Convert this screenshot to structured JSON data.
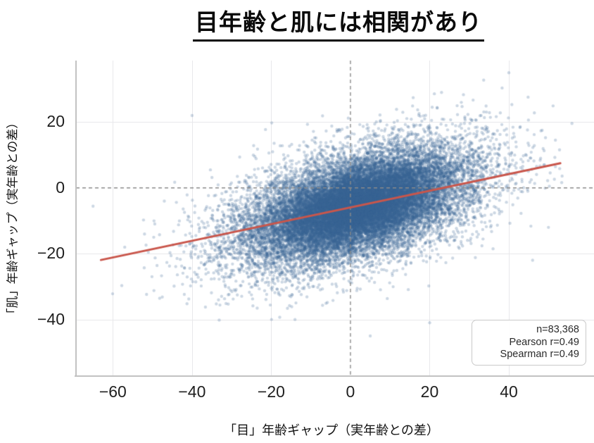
{
  "chart_data": {
    "type": "scatter",
    "title": "目年齢と肌には相関があり",
    "xlabel": "「目」年齢ギャップ（実年齢との差）",
    "ylabel": "「肌」年齢ギャップ（実年齢との差）",
    "xlim": [
      -69.3,
      61.5
    ],
    "ylim": [
      -57.2,
      38.7
    ],
    "xticks": [
      -60,
      -40,
      -20,
      0,
      20,
      40
    ],
    "xtick_labels": [
      "−60",
      "−40",
      "−20",
      "0",
      "20",
      "40"
    ],
    "yticks": [
      -40,
      -20,
      0,
      20
    ],
    "ytick_labels": [
      "−40",
      "−20",
      "0",
      "20"
    ],
    "grid": true,
    "legend": "none",
    "reference_lines": [
      {
        "axis": "x",
        "value": 0,
        "style": "dashed"
      },
      {
        "axis": "y",
        "value": 0,
        "style": "dashed"
      }
    ],
    "regression_line": {
      "x1": -63,
      "y1": -21.9,
      "x2": 53,
      "y2": 7.5
    },
    "stats_box": {
      "lines": [
        "n=83,368",
        "Pearson r=0.49",
        "Spearman r=0.49"
      ]
    },
    "n_points": 83368,
    "pearson_r": 0.49,
    "spearman_r": 0.49,
    "cloud": {
      "distribution": "bivariate_normal",
      "mean": [
        1.5,
        -5.5
      ],
      "sd": [
        15.5,
        9.5
      ],
      "r": 0.49,
      "seed": 11,
      "layers": [
        {
          "n": 16000,
          "sd_scale": 1.0
        },
        {
          "n": 9000,
          "sd_scale": 0.62
        }
      ],
      "point_radius": 2.2,
      "outliers": [
        [
          40,
          35
        ],
        [
          28,
          26
        ],
        [
          33,
          22
        ],
        [
          23,
          29
        ],
        [
          -47,
          -4
        ],
        [
          -52,
          -14
        ],
        [
          50,
          -12
        ],
        [
          46,
          -22
        ],
        [
          5,
          -45
        ],
        [
          -14,
          -40
        ],
        [
          20,
          -41
        ],
        [
          -40,
          22
        ],
        [
          -57,
          -18
        ]
      ]
    },
    "colors": {
      "point": "rgba(56,98,148,0.25)",
      "regression": "#c9564b",
      "reference": "#8a8a8a",
      "grid": "#e8e8eb",
      "spine": "#c2c2c2",
      "text": "#1f1f1f"
    }
  }
}
